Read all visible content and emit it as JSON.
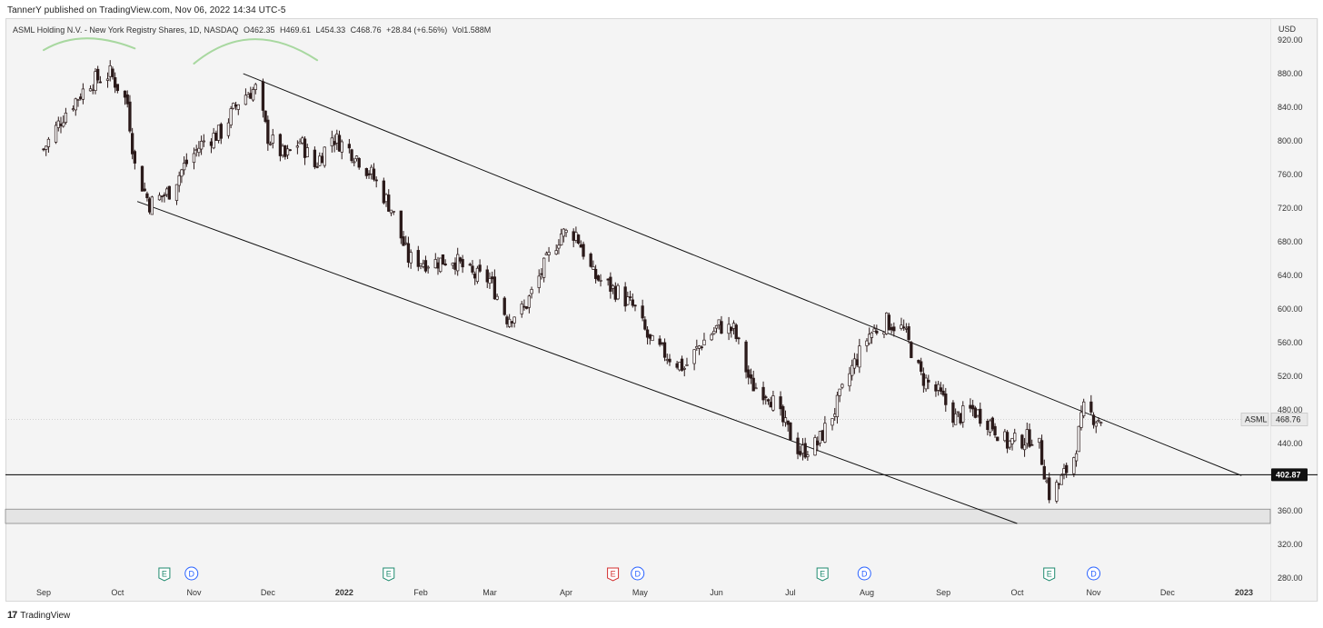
{
  "header": {
    "published": "TannerY published on TradingView.com, Nov 06, 2022 14:34 UTC-5",
    "symbol_name": "ASML Holding N.V. - New York Registry Shares, 1D, NASDAQ",
    "open": "O462.35",
    "high": "H469.61",
    "low": "L454.33",
    "close": "C468.76",
    "change": "+28.84 (+6.56%)",
    "volume": "Vol1.588M",
    "currency": "USD"
  },
  "footer": {
    "brand": "TradingView",
    "logo_mark": "17"
  },
  "colors": {
    "background": "#f4f4f4",
    "candle": "#2b1a1a",
    "earnings_green": "#1e8a6e",
    "earnings_red": "#d32f2f",
    "dividend_blue": "#2962ff",
    "annotation_green": "#a8d8a0",
    "support_zone": "#e4e4e4"
  },
  "chart_data": {
    "type": "candlestick",
    "x_range": [
      "2021-09-01",
      "2023-01-01"
    ],
    "ylim": [
      252,
      946
    ],
    "y_ticks": [
      920,
      880,
      840,
      800,
      760,
      720,
      680,
      640,
      600,
      560,
      520,
      480,
      440,
      360,
      320,
      280
    ],
    "x_ticks": [
      {
        "label": "Sep",
        "date": "2021-09-01",
        "bold": false
      },
      {
        "label": "Oct",
        "date": "2021-10-01",
        "bold": false
      },
      {
        "label": "Nov",
        "date": "2021-11-01",
        "bold": false
      },
      {
        "label": "Dec",
        "date": "2021-12-01",
        "bold": false
      },
      {
        "label": "2022",
        "date": "2022-01-01",
        "bold": true
      },
      {
        "label": "Feb",
        "date": "2022-02-01",
        "bold": false
      },
      {
        "label": "Mar",
        "date": "2022-03-01",
        "bold": false
      },
      {
        "label": "Apr",
        "date": "2022-04-01",
        "bold": false
      },
      {
        "label": "May",
        "date": "2022-05-01",
        "bold": false
      },
      {
        "label": "Jun",
        "date": "2022-06-01",
        "bold": false
      },
      {
        "label": "Jul",
        "date": "2022-07-01",
        "bold": false
      },
      {
        "label": "Aug",
        "date": "2022-08-01",
        "bold": false
      },
      {
        "label": "Sep",
        "date": "2022-09-01",
        "bold": false
      },
      {
        "label": "Oct",
        "date": "2022-10-01",
        "bold": false
      },
      {
        "label": "Nov",
        "date": "2022-11-01",
        "bold": false
      },
      {
        "label": "Dec",
        "date": "2022-12-01",
        "bold": false
      },
      {
        "label": "2023",
        "date": "2023-01-01",
        "bold": true
      }
    ],
    "price_path": [
      [
        "2021-09-01",
        790
      ],
      [
        "2021-09-10",
        835
      ],
      [
        "2021-09-20",
        870
      ],
      [
        "2021-09-28",
        880
      ],
      [
        "2021-10-05",
        845
      ],
      [
        "2021-10-08",
        770
      ],
      [
        "2021-10-14",
        725
      ],
      [
        "2021-10-22",
        740
      ],
      [
        "2021-10-28",
        770
      ],
      [
        "2021-11-05",
        800
      ],
      [
        "2021-11-12",
        810
      ],
      [
        "2021-11-20",
        852
      ],
      [
        "2021-11-26",
        862
      ],
      [
        "2021-12-01",
        805
      ],
      [
        "2021-12-08",
        780
      ],
      [
        "2021-12-14",
        800
      ],
      [
        "2021-12-20",
        770
      ],
      [
        "2021-12-27",
        805
      ],
      [
        "2022-01-05",
        785
      ],
      [
        "2022-01-12",
        760
      ],
      [
        "2022-01-20",
        720
      ],
      [
        "2022-01-27",
        660
      ],
      [
        "2022-02-05",
        655
      ],
      [
        "2022-02-14",
        660
      ],
      [
        "2022-02-22",
        640
      ],
      [
        "2022-03-01",
        635
      ],
      [
        "2022-03-08",
        590
      ],
      [
        "2022-03-15",
        600
      ],
      [
        "2022-03-23",
        650
      ],
      [
        "2022-03-30",
        690
      ],
      [
        "2022-04-05",
        690
      ],
      [
        "2022-04-12",
        640
      ],
      [
        "2022-04-22",
        620
      ],
      [
        "2022-04-29",
        600
      ],
      [
        "2022-05-05",
        560
      ],
      [
        "2022-05-12",
        545
      ],
      [
        "2022-05-19",
        530
      ],
      [
        "2022-05-26",
        560
      ],
      [
        "2022-06-02",
        580
      ],
      [
        "2022-06-08",
        575
      ],
      [
        "2022-06-15",
        510
      ],
      [
        "2022-06-22",
        500
      ],
      [
        "2022-06-28",
        465
      ],
      [
        "2022-07-05",
        430
      ],
      [
        "2022-07-12",
        440
      ],
      [
        "2022-07-19",
        480
      ],
      [
        "2022-07-26",
        530
      ],
      [
        "2022-08-02",
        570
      ],
      [
        "2022-08-09",
        585
      ],
      [
        "2022-08-16",
        575
      ],
      [
        "2022-08-23",
        520
      ],
      [
        "2022-08-30",
        500
      ],
      [
        "2022-09-06",
        470
      ],
      [
        "2022-09-13",
        480
      ],
      [
        "2022-09-20",
        465
      ],
      [
        "2022-09-27",
        440
      ],
      [
        "2022-10-04",
        445
      ],
      [
        "2022-10-09",
        450
      ],
      [
        "2022-10-14",
        380
      ],
      [
        "2022-10-18",
        392
      ],
      [
        "2022-10-24",
        425
      ],
      [
        "2022-10-28",
        480
      ],
      [
        "2022-11-02",
        470
      ],
      [
        "2022-11-04",
        469
      ]
    ],
    "last_price": {
      "value": 468.76,
      "label": "468.76",
      "symbol": "ASML"
    },
    "horizontal_line": {
      "value": 402.87,
      "label": "402.87"
    },
    "support_zone": {
      "from": 362,
      "to": 345
    },
    "channel_upper": {
      "from": [
        "2021-11-21",
        880
      ],
      "to": [
        "2022-12-31",
        402
      ]
    },
    "channel_lower": {
      "from": [
        "2021-10-09",
        728
      ],
      "to": [
        "2022-10-01",
        345
      ]
    },
    "annotations": [
      {
        "type": "arc",
        "from": [
          "2021-09-01",
          908
        ],
        "peak": [
          "2021-09-18",
          922
        ],
        "to": [
          "2021-10-08",
          910
        ]
      },
      {
        "type": "arc",
        "from": [
          "2021-11-01",
          892
        ],
        "peak": [
          "2021-11-25",
          921
        ],
        "to": [
          "2021-12-21",
          896
        ]
      }
    ],
    "events": [
      {
        "label": "E",
        "date": "2021-10-20",
        "kind": "earnings",
        "color": "green"
      },
      {
        "label": "D",
        "date": "2021-10-31",
        "kind": "dividend",
        "color": "blue"
      },
      {
        "label": "E",
        "date": "2022-01-19",
        "kind": "earnings",
        "color": "green"
      },
      {
        "label": "E",
        "date": "2022-04-20",
        "kind": "earnings",
        "color": "red"
      },
      {
        "label": "D",
        "date": "2022-04-30",
        "kind": "dividend",
        "color": "blue"
      },
      {
        "label": "E",
        "date": "2022-07-14",
        "kind": "earnings",
        "color": "green"
      },
      {
        "label": "D",
        "date": "2022-07-31",
        "kind": "dividend",
        "color": "blue"
      },
      {
        "label": "E",
        "date": "2022-10-14",
        "kind": "earnings",
        "color": "green"
      },
      {
        "label": "D",
        "date": "2022-11-01",
        "kind": "dividend",
        "color": "blue"
      }
    ]
  }
}
